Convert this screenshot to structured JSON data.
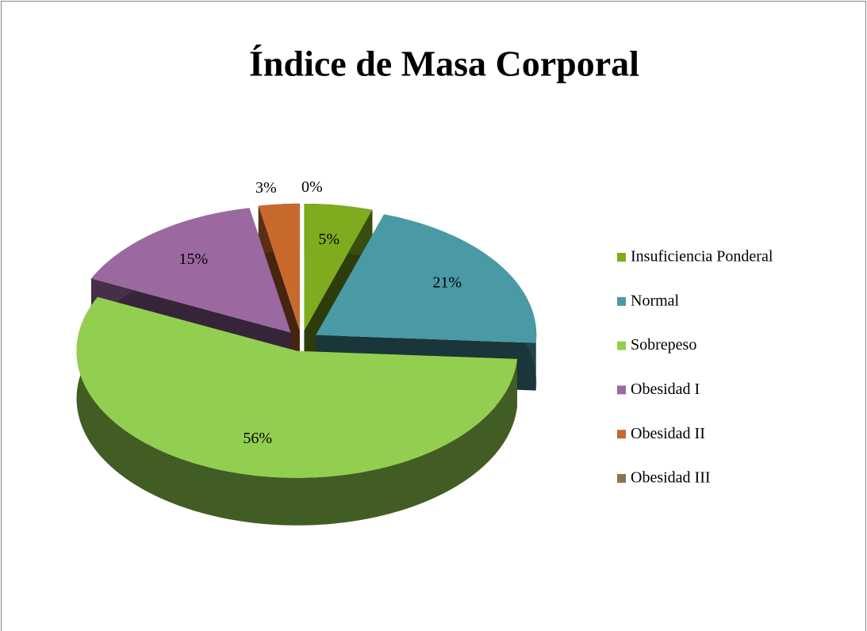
{
  "chart_data": {
    "type": "pie",
    "title": "Índice de Masa Corporal",
    "categories": [
      "Insuficiencia Ponderal",
      "Normal",
      "Sobrepeso",
      "Obesidad I",
      "Obesidad II",
      "Obesidad III"
    ],
    "values": [
      5,
      21,
      56,
      15,
      3,
      0
    ],
    "value_labels": [
      "5%",
      "21%",
      "56%",
      "15%",
      "3%",
      "0%"
    ],
    "colors": [
      "#7fab1e",
      "#4a9aa5",
      "#92cf50",
      "#9b69a0",
      "#c8692e",
      "#8b7352"
    ],
    "legend": "right"
  }
}
